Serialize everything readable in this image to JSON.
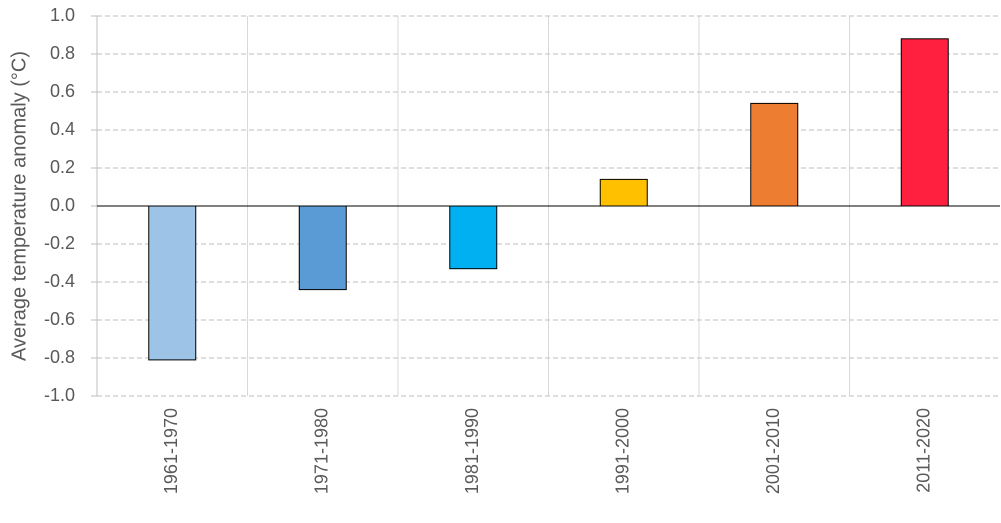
{
  "chart_data": {
    "type": "bar",
    "y_label": "Average temperature anomaly (°C)",
    "categories": [
      "1961-1970",
      "1971-1980",
      "1981-1990",
      "1991-2000",
      "2001-2010",
      "2011-2020"
    ],
    "values": [
      -0.81,
      -0.44,
      -0.33,
      0.14,
      0.54,
      0.88
    ],
    "colors": [
      "#9dc3e6",
      "#5b9bd5",
      "#00b0f0",
      "#ffc000",
      "#ed7d31",
      "#ff1f3e"
    ],
    "ylim": [
      -1,
      1
    ],
    "yticks": [
      {
        "value": -1,
        "label": "-1.0"
      },
      -0.8,
      -0.6,
      -0.4,
      -0.2,
      {
        "value": 0,
        "label": "0.0"
      },
      0.2,
      0.4,
      0.6,
      0.8,
      {
        "value": 1,
        "label": "1.0"
      }
    ],
    "grid": true
  }
}
